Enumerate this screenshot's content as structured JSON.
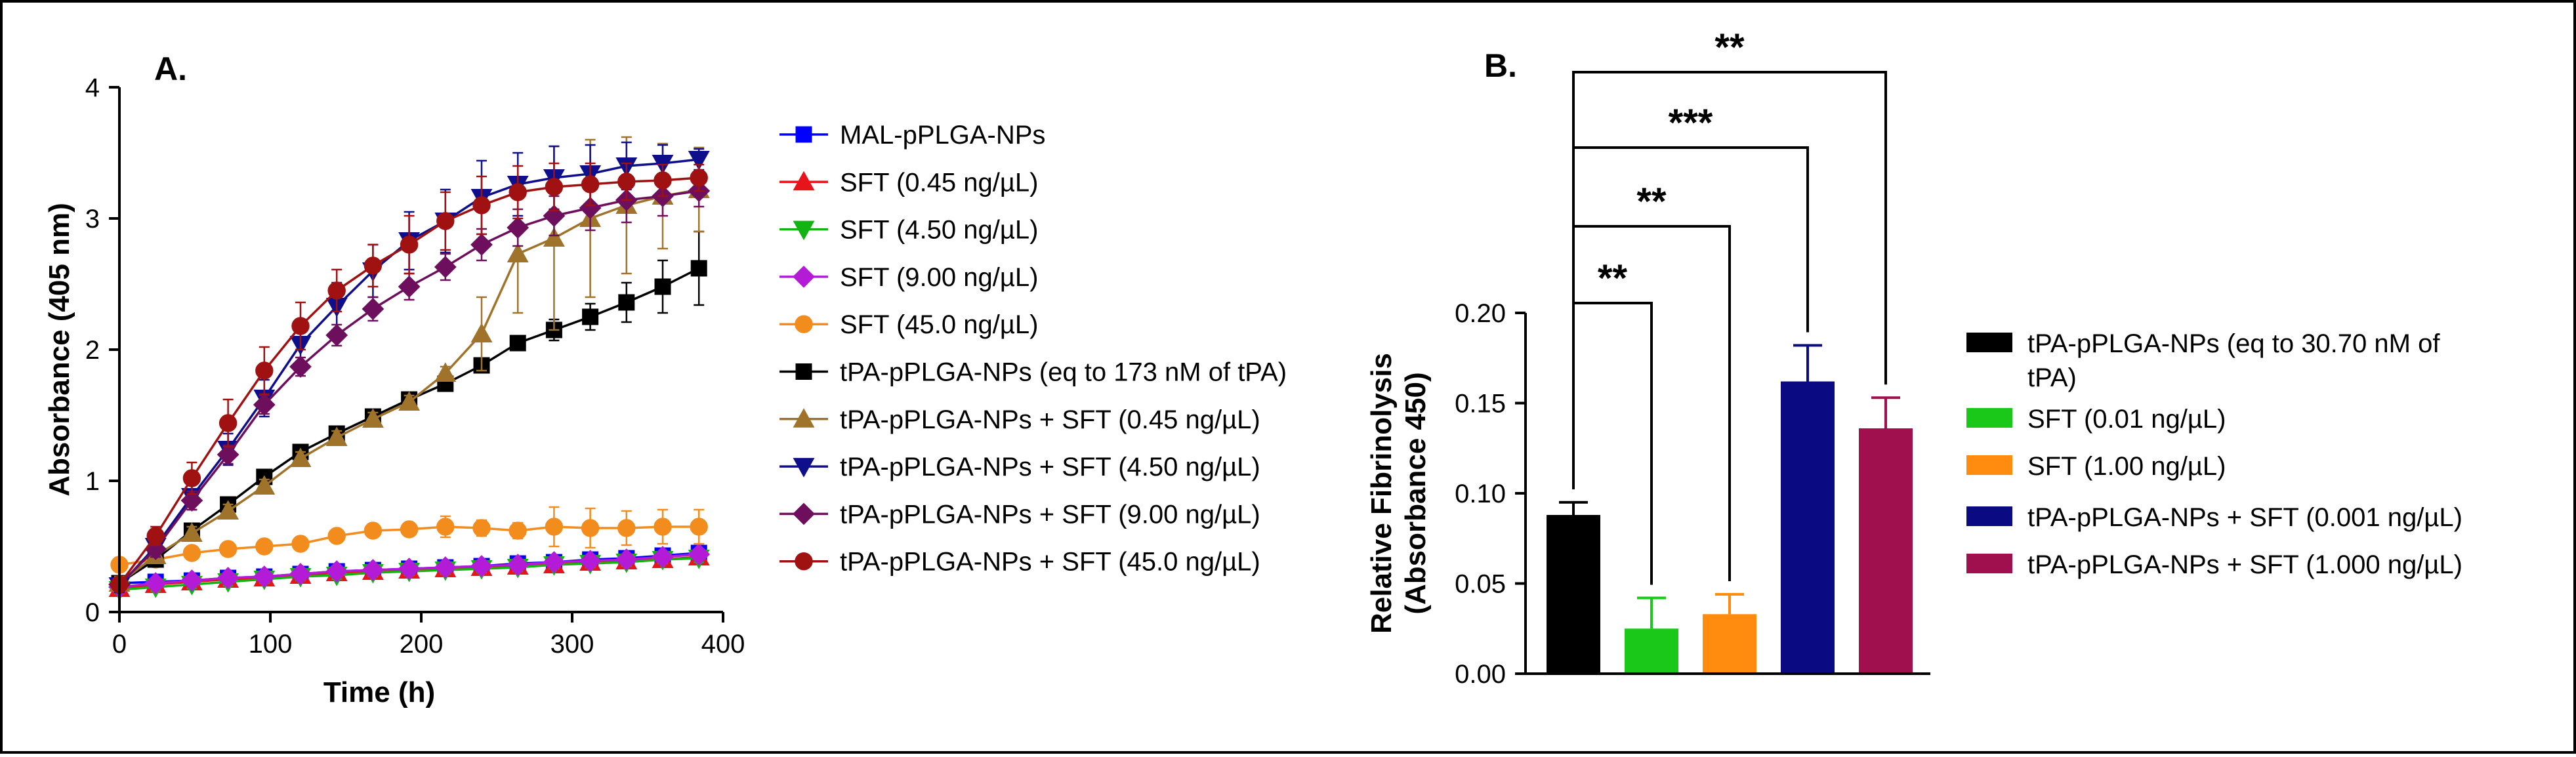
{
  "chart_data": [
    {
      "panel_label": "A.",
      "type": "line",
      "xlabel": "Time (h)",
      "ylabel": "Absorbance (405 nm)",
      "xlim": [
        0,
        400
      ],
      "ylim": [
        0,
        4
      ],
      "xticks": [
        0,
        100,
        200,
        300,
        400
      ],
      "yticks": [
        0,
        1,
        2,
        3,
        4
      ],
      "legend_position": "right",
      "x": [
        0,
        24,
        48,
        72,
        96,
        120,
        144,
        168,
        192,
        216,
        240,
        264,
        288,
        312,
        336,
        360,
        384
      ],
      "series": [
        {
          "name": "MAL-pPLGA-NPs",
          "color": "#0000ff",
          "marker": "square",
          "values": [
            0.22,
            0.23,
            0.24,
            0.26,
            0.27,
            0.29,
            0.31,
            0.32,
            0.33,
            0.34,
            0.35,
            0.37,
            0.38,
            0.4,
            0.41,
            0.43,
            0.45
          ],
          "errors": [
            0.03,
            0.03,
            0.03,
            0.03,
            0.03,
            0.03,
            0.03,
            0.03,
            0.03,
            0.03,
            0.03,
            0.03,
            0.03,
            0.03,
            0.03,
            0.03,
            0.03
          ]
        },
        {
          "name": "SFT (0.45 ng/µL)",
          "color": "#e8141b",
          "marker": "triangle-up",
          "values": [
            0.18,
            0.21,
            0.23,
            0.25,
            0.26,
            0.28,
            0.3,
            0.31,
            0.32,
            0.33,
            0.34,
            0.35,
            0.36,
            0.38,
            0.39,
            0.4,
            0.42
          ],
          "errors": [
            0.03,
            0.03,
            0.03,
            0.03,
            0.03,
            0.03,
            0.03,
            0.03,
            0.03,
            0.03,
            0.03,
            0.03,
            0.03,
            0.03,
            0.03,
            0.03,
            0.03
          ]
        },
        {
          "name": "SFT (4.50 ng/µL)",
          "color": "#13b313",
          "marker": "triangle-down",
          "values": [
            0.17,
            0.19,
            0.21,
            0.23,
            0.25,
            0.27,
            0.28,
            0.3,
            0.31,
            0.32,
            0.33,
            0.34,
            0.36,
            0.37,
            0.38,
            0.4,
            0.41
          ],
          "errors": [
            0.03,
            0.03,
            0.03,
            0.03,
            0.03,
            0.03,
            0.03,
            0.03,
            0.03,
            0.03,
            0.03,
            0.03,
            0.03,
            0.03,
            0.03,
            0.03,
            0.03
          ]
        },
        {
          "name": "SFT (9.00 ng/µL)",
          "color": "#b31bd6",
          "marker": "diamond",
          "values": [
            0.19,
            0.22,
            0.24,
            0.26,
            0.27,
            0.29,
            0.31,
            0.32,
            0.33,
            0.34,
            0.35,
            0.36,
            0.38,
            0.39,
            0.4,
            0.42,
            0.44
          ],
          "errors": [
            0.03,
            0.03,
            0.03,
            0.03,
            0.03,
            0.03,
            0.03,
            0.03,
            0.03,
            0.03,
            0.03,
            0.03,
            0.03,
            0.03,
            0.03,
            0.03,
            0.03
          ]
        },
        {
          "name": "SFT (45.0 ng/µL)",
          "color": "#f28c1d",
          "marker": "circle",
          "values": [
            0.36,
            0.4,
            0.45,
            0.48,
            0.5,
            0.52,
            0.58,
            0.62,
            0.63,
            0.65,
            0.64,
            0.62,
            0.65,
            0.64,
            0.64,
            0.65,
            0.65
          ],
          "errors": [
            0.04,
            0.05,
            0.05,
            0.05,
            0.05,
            0.05,
            0.05,
            0.05,
            0.05,
            0.08,
            0.06,
            0.06,
            0.15,
            0.15,
            0.13,
            0.13,
            0.13
          ]
        },
        {
          "name": "tPA-pPLGA-NPs (eq to 173 nM of tPA)",
          "color": "#000000",
          "marker": "square",
          "values": [
            0.22,
            0.4,
            0.62,
            0.82,
            1.03,
            1.22,
            1.36,
            1.49,
            1.62,
            1.74,
            1.88,
            2.05,
            2.15,
            2.25,
            2.36,
            2.48,
            2.62
          ],
          "errors": [
            0.05,
            0.05,
            0.05,
            0.05,
            0.05,
            0.05,
            0.05,
            0.05,
            0.05,
            0.05,
            0.05,
            0.05,
            0.08,
            0.1,
            0.15,
            0.2,
            0.28
          ]
        },
        {
          "name": "tPA-pPLGA-NPs + SFT (0.45 ng/µL)",
          "color": "#a0732b",
          "marker": "triangle-up",
          "values": [
            0.22,
            0.43,
            0.6,
            0.77,
            0.96,
            1.17,
            1.33,
            1.47,
            1.6,
            1.82,
            2.12,
            2.73,
            2.85,
            3.0,
            3.1,
            3.17,
            3.22
          ],
          "errors": [
            0.05,
            0.05,
            0.05,
            0.05,
            0.05,
            0.05,
            0.05,
            0.05,
            0.05,
            0.05,
            0.28,
            0.45,
            0.7,
            0.6,
            0.52,
            0.4,
            0.32
          ]
        },
        {
          "name": "tPA-pPLGA-NPs + SFT (4.50 ng/µL)",
          "color": "#0f0f8c",
          "marker": "triangle-down",
          "values": [
            0.2,
            0.5,
            0.88,
            1.24,
            1.63,
            2.04,
            2.33,
            2.6,
            2.83,
            2.98,
            3.16,
            3.26,
            3.31,
            3.34,
            3.4,
            3.42,
            3.45
          ],
          "errors": [
            0.05,
            0.08,
            0.1,
            0.12,
            0.14,
            0.15,
            0.18,
            0.2,
            0.22,
            0.24,
            0.28,
            0.24,
            0.24,
            0.22,
            0.18,
            0.14,
            0.08
          ]
        },
        {
          "name": "tPA-pPLGA-NPs + SFT (9.00 ng/µL)",
          "color": "#6e0f5e",
          "marker": "diamond",
          "values": [
            0.21,
            0.48,
            0.85,
            1.2,
            1.58,
            1.87,
            2.11,
            2.31,
            2.48,
            2.63,
            2.8,
            2.93,
            3.02,
            3.08,
            3.14,
            3.17,
            3.21
          ],
          "errors": [
            0.05,
            0.06,
            0.07,
            0.07,
            0.07,
            0.07,
            0.08,
            0.09,
            0.1,
            0.1,
            0.12,
            0.14,
            0.15,
            0.17,
            0.17,
            0.15,
            0.12
          ]
        },
        {
          "name": "tPA-pPLGA-NPs + SFT (45.0 ng/µL)",
          "color": "#a01111",
          "marker": "circle",
          "values": [
            0.21,
            0.58,
            1.02,
            1.44,
            1.84,
            2.18,
            2.45,
            2.64,
            2.8,
            2.98,
            3.1,
            3.2,
            3.24,
            3.26,
            3.28,
            3.29,
            3.31
          ],
          "errors": [
            0.05,
            0.07,
            0.12,
            0.18,
            0.18,
            0.18,
            0.16,
            0.16,
            0.22,
            0.22,
            0.22,
            0.2,
            0.18,
            0.16,
            0.14,
            0.12,
            0.1
          ]
        }
      ]
    },
    {
      "panel_label": "B.",
      "type": "bar",
      "ylabel": "Relative Fibrinolysis",
      "ylabel2": "(Absorbance 450)",
      "ylim": [
        0,
        0.2
      ],
      "yticks": [
        "0.00",
        "0.05",
        "0.10",
        "0.15",
        "0.20"
      ],
      "legend_position": "right",
      "series": [
        {
          "name": "tPA-pPLGA-NPs (eq to 30.70 nM of",
          "name2": "tPA)",
          "color": "#000000",
          "value": 0.088,
          "error": 0.007
        },
        {
          "name": "SFT (0.01 ng/µL)",
          "color": "#1ac81a",
          "value": 0.025,
          "error": 0.017
        },
        {
          "name": "SFT (1.00 ng/µL)",
          "color": "#ff8c0f",
          "value": 0.033,
          "error": 0.011
        },
        {
          "name": "tPA-pPLGA-NPs +  SFT (0.001 ng/µL)",
          "color": "#0a0a82",
          "value": 0.162,
          "error": 0.02
        },
        {
          "name": "tPA-pPLGA-NPs  + SFT (1.000 ng/µL)",
          "color": "#a0104f",
          "value": 0.136,
          "error": 0.017
        }
      ],
      "significance": [
        {
          "from": 0,
          "to": 1,
          "label": "**"
        },
        {
          "from": 0,
          "to": 2,
          "label": "**"
        },
        {
          "from": 0,
          "to": 3,
          "label": "***"
        },
        {
          "from": 0,
          "to": 4,
          "label": "**"
        }
      ]
    }
  ]
}
